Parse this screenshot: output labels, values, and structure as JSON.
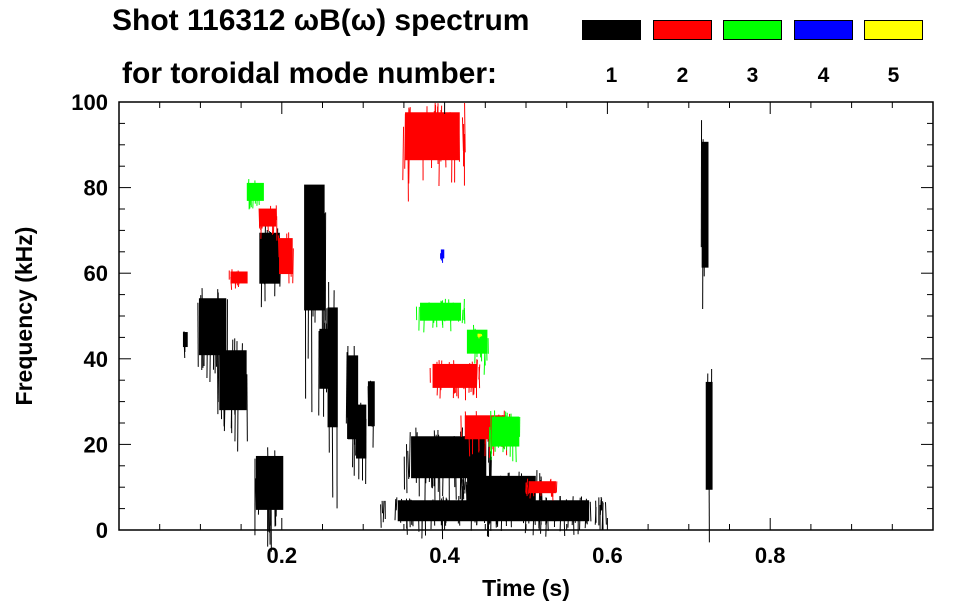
{
  "chart_data": {
    "type": "heatmap",
    "title_line1": "Shot 116312 ωB(ω) spectrum",
    "title_line2": "for toroidal mode number:",
    "xlabel": "Time (s)",
    "ylabel": "Frequency (kHz)",
    "xlim": [
      0.0,
      1.0
    ],
    "ylim": [
      0,
      100
    ],
    "x_ticks": [
      0.2,
      0.4,
      0.6,
      0.8
    ],
    "x_tick_labels": [
      "0.2",
      "0.4",
      "0.6",
      "0.8"
    ],
    "y_ticks": [
      0,
      20,
      40,
      60,
      80,
      100
    ],
    "y_tick_labels": [
      "0",
      "20",
      "40",
      "60",
      "80",
      "100"
    ],
    "legend": [
      {
        "label": "1",
        "color": "#000000"
      },
      {
        "label": "2",
        "color": "#ff0000"
      },
      {
        "label": "3",
        "color": "#00ff00"
      },
      {
        "label": "4",
        "color": "#0000ff"
      },
      {
        "label": "5",
        "color": "#ffff00"
      }
    ],
    "regions": [
      {
        "mode": 1,
        "t": [
          0.095,
          0.135
        ],
        "f": [
          38,
          57
        ]
      },
      {
        "mode": 1,
        "t": [
          0.078,
          0.085
        ],
        "f": [
          42,
          47
        ]
      },
      {
        "mode": 1,
        "t": [
          0.12,
          0.16
        ],
        "f": [
          25,
          45
        ]
      },
      {
        "mode": 1,
        "t": [
          0.165,
          0.205
        ],
        "f": [
          2,
          20
        ]
      },
      {
        "mode": 1,
        "t": [
          0.17,
          0.2
        ],
        "f": [
          55,
          72
        ]
      },
      {
        "mode": 1,
        "t": [
          0.225,
          0.255
        ],
        "f": [
          45,
          87
        ]
      },
      {
        "mode": 1,
        "t": [
          0.245,
          0.26
        ],
        "f": [
          30,
          50
        ]
      },
      {
        "mode": 1,
        "t": [
          0.255,
          0.27
        ],
        "f": [
          18,
          58
        ]
      },
      {
        "mode": 1,
        "t": [
          0.28,
          0.295
        ],
        "f": [
          17,
          45
        ]
      },
      {
        "mode": 1,
        "t": [
          0.29,
          0.305
        ],
        "f": [
          14,
          32
        ]
      },
      {
        "mode": 1,
        "t": [
          0.305,
          0.315
        ],
        "f": [
          22,
          37
        ]
      },
      {
        "mode": 1,
        "t": [
          0.35,
          0.46
        ],
        "f": [
          10,
          24
        ]
      },
      {
        "mode": 1,
        "t": [
          0.32,
          0.6
        ],
        "f": [
          1,
          8
        ]
      },
      {
        "mode": 1,
        "t": [
          0.42,
          0.52
        ],
        "f": [
          5,
          14
        ]
      },
      {
        "mode": 1,
        "t": [
          0.715,
          0.725
        ],
        "f": [
          55,
          97
        ]
      },
      {
        "mode": 1,
        "t": [
          0.72,
          0.73
        ],
        "f": [
          4,
          40
        ]
      },
      {
        "mode": 2,
        "t": [
          0.345,
          0.425
        ],
        "f": [
          84,
          100
        ]
      },
      {
        "mode": 2,
        "t": [
          0.38,
          0.445
        ],
        "f": [
          32,
          40
        ]
      },
      {
        "mode": 2,
        "t": [
          0.42,
          0.48
        ],
        "f": [
          20,
          28
        ]
      },
      {
        "mode": 2,
        "t": [
          0.17,
          0.195
        ],
        "f": [
          70,
          76
        ]
      },
      {
        "mode": 2,
        "t": [
          0.195,
          0.215
        ],
        "f": [
          58,
          70
        ]
      },
      {
        "mode": 2,
        "t": [
          0.135,
          0.16
        ],
        "f": [
          57,
          61
        ]
      },
      {
        "mode": 2,
        "t": [
          0.5,
          0.54
        ],
        "f": [
          8,
          12
        ]
      },
      {
        "mode": 3,
        "t": [
          0.365,
          0.425
        ],
        "f": [
          48,
          54
        ]
      },
      {
        "mode": 3,
        "t": [
          0.425,
          0.455
        ],
        "f": [
          40,
          48
        ]
      },
      {
        "mode": 3,
        "t": [
          0.455,
          0.495
        ],
        "f": [
          18,
          28
        ]
      },
      {
        "mode": 3,
        "t": [
          0.155,
          0.18
        ],
        "f": [
          76,
          82
        ]
      },
      {
        "mode": 4,
        "t": [
          0.395,
          0.4
        ],
        "f": [
          63,
          66
        ]
      },
      {
        "mode": 5,
        "t": [
          0.44,
          0.445
        ],
        "f": [
          45,
          46
        ]
      }
    ]
  }
}
